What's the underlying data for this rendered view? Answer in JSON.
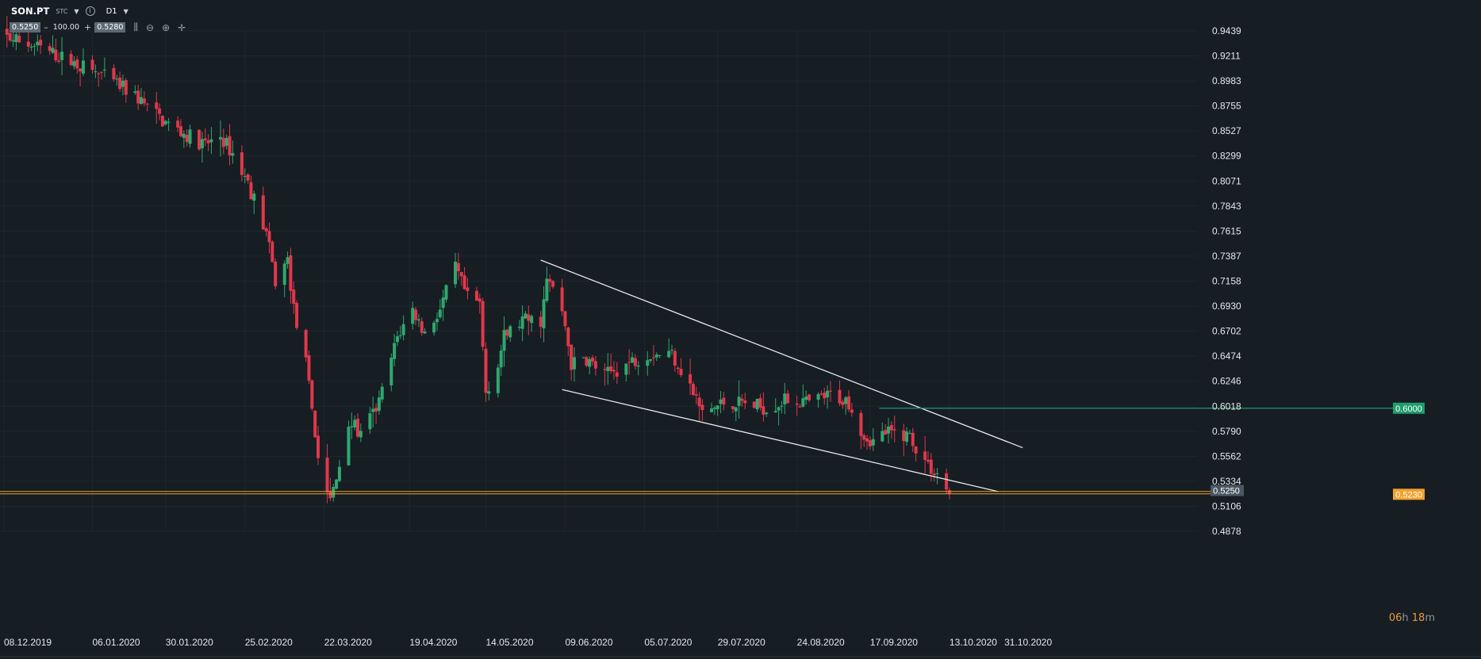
{
  "header": {
    "symbol": "SON.PT",
    "exchange": "STC",
    "timeframe": "D1",
    "bid": "0.5250",
    "zoom": "100.00",
    "ask": "0.5280",
    "minus": "–",
    "plus": "+"
  },
  "countdown": {
    "hours": "06",
    "h_unit": "h",
    "minutes": "18",
    "m_unit": "m"
  },
  "colors": {
    "bg": "#161d23",
    "up": "#2fa86e",
    "down": "#e0384b",
    "grid": "#1f272e",
    "trendline": "#e6e9ec",
    "support": "#f0a22e",
    "target": "#1f9e6c"
  },
  "chart_data": {
    "type": "candlestick",
    "y_ticks": [
      "0.9439",
      "0.9211",
      "0.8983",
      "0.8755",
      "0.8527",
      "0.8299",
      "0.8071",
      "0.7843",
      "0.7615",
      "0.7387",
      "0.7158",
      "0.6930",
      "0.6702",
      "0.6474",
      "0.6246",
      "0.6018",
      "0.5790",
      "0.5562",
      "0.5334",
      "0.5106",
      "0.4878"
    ],
    "x_ticks": [
      "08.12.2019",
      "06.01.2020",
      "30.01.2020",
      "25.02.2020",
      "22.03.2020",
      "19.04.2020",
      "14.05.2020",
      "09.06.2020",
      "05.07.2020",
      "29.07.2020",
      "24.08.2020",
      "17.09.2020",
      "13.10.2020",
      "31.10.2020"
    ],
    "ylim": [
      0.4878,
      0.9439
    ],
    "price_labels": {
      "current": {
        "value": "0.5250",
        "color": "#4b5863"
      },
      "support": {
        "value": "0.5230",
        "price": 0.523,
        "color": "#f0a22e"
      },
      "target": {
        "value": "0.6000",
        "price": 0.6,
        "color": "#1f9e6c"
      }
    },
    "trendlines": [
      {
        "name": "upper",
        "from": [
          "2020-06-01",
          0.735
        ],
        "to": [
          "2020-11-06",
          0.564
        ]
      },
      {
        "name": "lower",
        "from": [
          "2020-06-08",
          0.617
        ],
        "to": [
          "2020-10-29",
          0.524
        ]
      }
    ],
    "anchors": [
      [
        "2019-12-02",
        0.945
      ],
      [
        "2019-12-20",
        0.928
      ],
      [
        "2020-01-08",
        0.905
      ],
      [
        "2020-01-20",
        0.885
      ],
      [
        "2020-01-29",
        0.862
      ],
      [
        "2020-02-05",
        0.85
      ],
      [
        "2020-02-12",
        0.84
      ],
      [
        "2020-02-17",
        0.848
      ],
      [
        "2020-02-21",
        0.832
      ],
      [
        "2020-02-26",
        0.805
      ],
      [
        "2020-03-03",
        0.76
      ],
      [
        "2020-03-06",
        0.715
      ],
      [
        "2020-03-10",
        0.735
      ],
      [
        "2020-03-12",
        0.69
      ],
      [
        "2020-03-16",
        0.64
      ],
      [
        "2020-03-18",
        0.6
      ],
      [
        "2020-03-20",
        0.555
      ],
      [
        "2020-03-24",
        0.515
      ],
      [
        "2020-03-26",
        0.535
      ],
      [
        "2020-03-30",
        0.59
      ],
      [
        "2020-04-03",
        0.575
      ],
      [
        "2020-04-09",
        0.605
      ],
      [
        "2020-04-15",
        0.665
      ],
      [
        "2020-04-20",
        0.69
      ],
      [
        "2020-04-24",
        0.668
      ],
      [
        "2020-04-29",
        0.69
      ],
      [
        "2020-05-04",
        0.728
      ],
      [
        "2020-05-08",
        0.7
      ],
      [
        "2020-05-12",
        0.695
      ],
      [
        "2020-05-14",
        0.615
      ],
      [
        "2020-05-18",
        0.64
      ],
      [
        "2020-05-20",
        0.665
      ],
      [
        "2020-05-26",
        0.68
      ],
      [
        "2020-06-01",
        0.68
      ],
      [
        "2020-06-03",
        0.715
      ],
      [
        "2020-06-05",
        0.71
      ],
      [
        "2020-06-09",
        0.675
      ],
      [
        "2020-06-11",
        0.64
      ],
      [
        "2020-06-16",
        0.645
      ],
      [
        "2020-06-22",
        0.63
      ],
      [
        "2020-06-29",
        0.64
      ],
      [
        "2020-07-06",
        0.65
      ],
      [
        "2020-07-14",
        0.65
      ],
      [
        "2020-07-20",
        0.62
      ],
      [
        "2020-07-24",
        0.595
      ],
      [
        "2020-07-31",
        0.605
      ],
      [
        "2020-08-06",
        0.605
      ],
      [
        "2020-08-14",
        0.6
      ],
      [
        "2020-08-21",
        0.608
      ],
      [
        "2020-08-28",
        0.605
      ],
      [
        "2020-09-04",
        0.612
      ],
      [
        "2020-09-10",
        0.606
      ],
      [
        "2020-09-15",
        0.575
      ],
      [
        "2020-09-18",
        0.57
      ],
      [
        "2020-09-22",
        0.578
      ],
      [
        "2020-09-30",
        0.575
      ],
      [
        "2020-10-02",
        0.565
      ],
      [
        "2020-10-06",
        0.548
      ],
      [
        "2020-10-09",
        0.54
      ],
      [
        "2020-10-13",
        0.522
      ]
    ]
  }
}
